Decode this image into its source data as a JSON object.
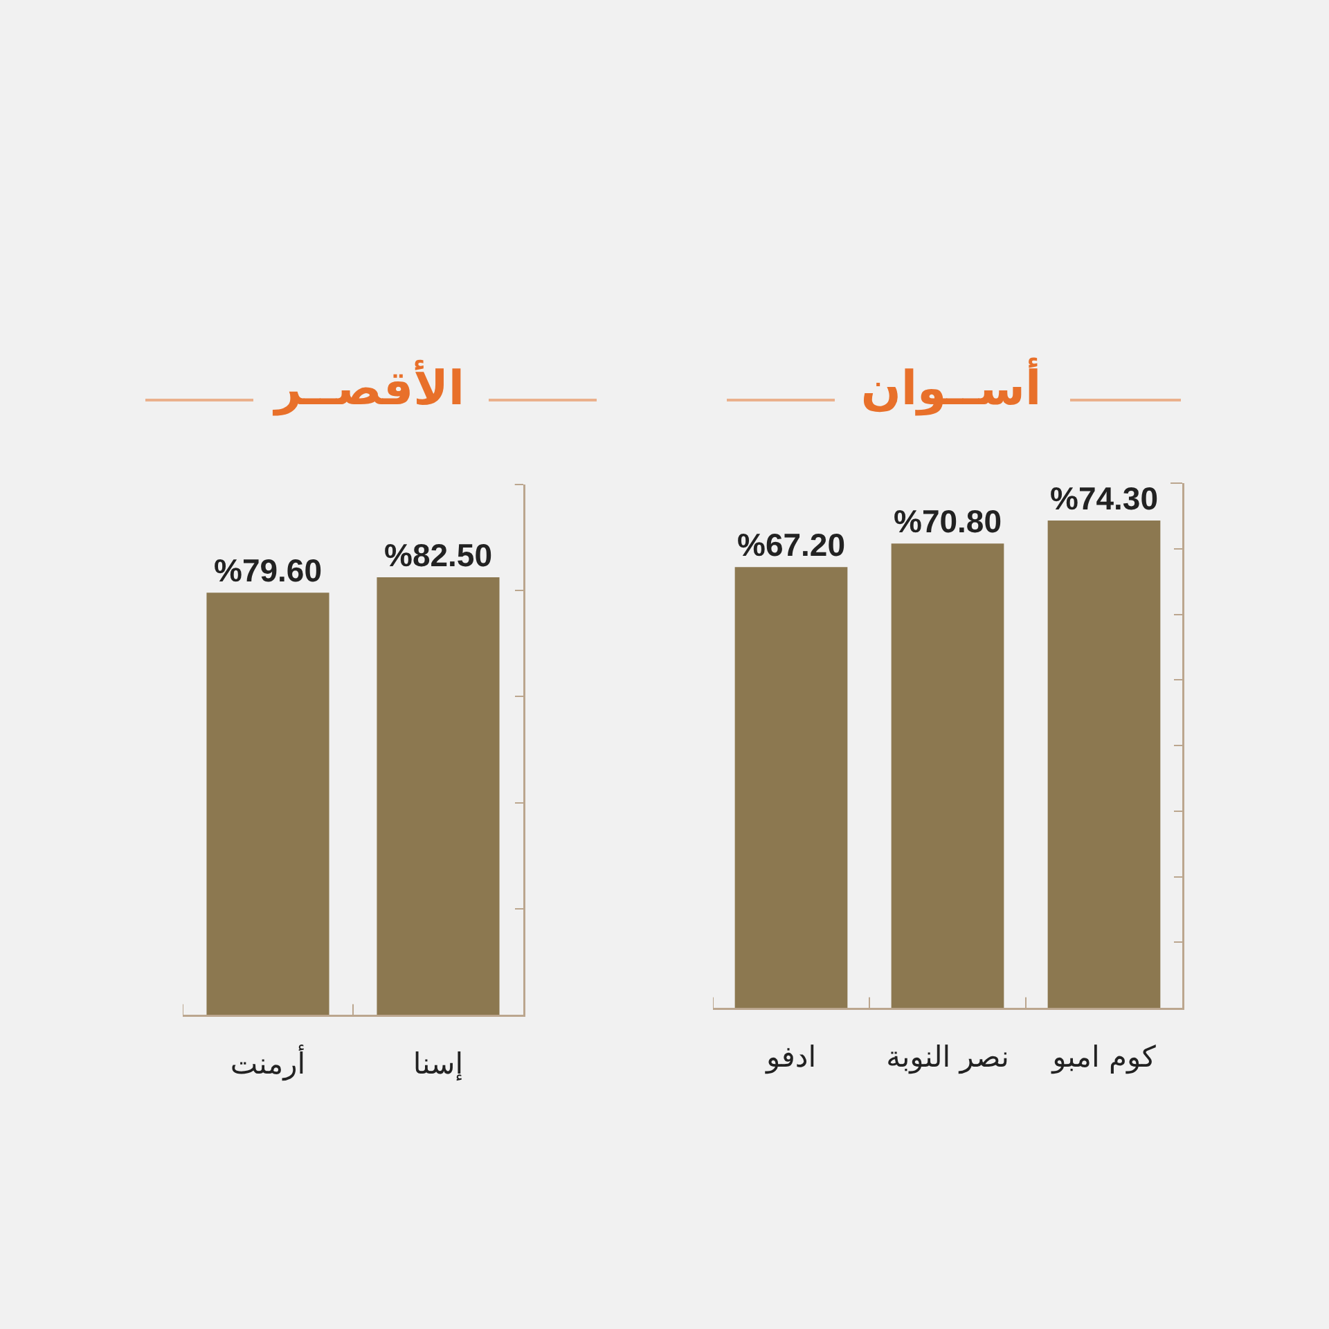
{
  "chart_data": [
    {
      "type": "bar",
      "title": "أســوان",
      "categories": [
        "ادفو",
        "نصر النوبة",
        "كوم امبو"
      ],
      "values": [
        67.2,
        70.8,
        74.3
      ],
      "value_labels": [
        "%67.20",
        "%70.80",
        "%74.30"
      ],
      "color": "#8c7850",
      "ylim": [
        0,
        80
      ],
      "yticks": [
        {
          "value": 0,
          "label": null
        },
        {
          "value": 10,
          "label": null
        },
        {
          "value": 20,
          "label": null
        },
        {
          "value": 30,
          "label": null
        },
        {
          "value": 40,
          "label": null
        },
        {
          "value": 50,
          "label": null
        },
        {
          "value": 60,
          "label": null
        },
        {
          "value": 70,
          "label": null
        }
      ],
      "tick_labels": "x"
    },
    {
      "type": "bar",
      "title": "الأقصــر",
      "categories": [
        "أرمنت",
        "إسنا"
      ],
      "values": [
        79.6,
        82.5
      ],
      "value_labels": [
        "%79.60",
        "%82.50"
      ],
      "color": "#8c7850",
      "ylim": [
        0,
        100
      ],
      "yticks": [
        {
          "value": 0,
          "label": null
        },
        {
          "value": 20,
          "label": null
        },
        {
          "value": 40,
          "label": null
        },
        {
          "value": 60,
          "label": null
        },
        {
          "value": 80,
          "label": null
        }
      ],
      "tick_labels": "x"
    }
  ]
}
